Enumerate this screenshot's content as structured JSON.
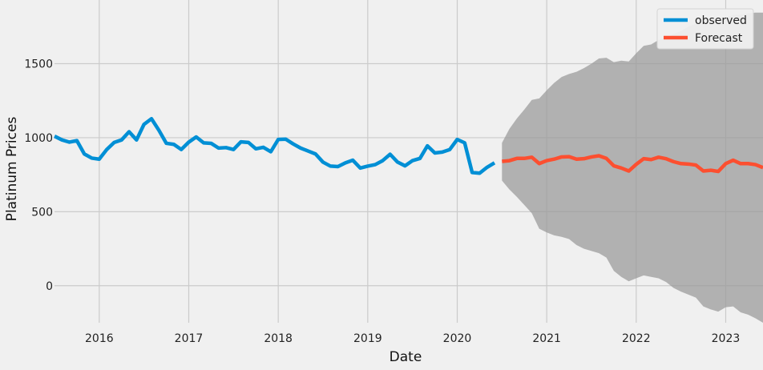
{
  "chart_data": {
    "type": "line",
    "xlabel": "Date",
    "ylabel": "Platinum Prices",
    "xlim": [
      "2015-07-01",
      "2023-06-01"
    ],
    "ylim": [
      -250,
      1930
    ],
    "x_tick_labels": [
      "2016",
      "2017",
      "2018",
      "2019",
      "2020",
      "2021",
      "2022",
      "2023"
    ],
    "y_tick_labels": [
      "0",
      "500",
      "1000",
      "1500"
    ],
    "y_ticks": [
      0,
      500,
      1000,
      1500
    ],
    "grid": true,
    "legend_position": "top-right",
    "colors": {
      "observed": "#008fd5",
      "forecast": "#fc4f30",
      "confidence_band": "#999999",
      "background": "#f0f0f0",
      "grid": "#cbcbcb"
    },
    "series": [
      {
        "name": "observed",
        "points": [
          [
            "2015-07-01",
            1010
          ],
          [
            "2015-08-01",
            985
          ],
          [
            "2015-09-01",
            970
          ],
          [
            "2015-10-01",
            980
          ],
          [
            "2015-11-01",
            890
          ],
          [
            "2015-12-01",
            862
          ],
          [
            "2016-01-01",
            855
          ],
          [
            "2016-02-01",
            920
          ],
          [
            "2016-03-01",
            968
          ],
          [
            "2016-04-01",
            985
          ],
          [
            "2016-05-01",
            1040
          ],
          [
            "2016-06-01",
            985
          ],
          [
            "2016-07-01",
            1090
          ],
          [
            "2016-08-01",
            1128
          ],
          [
            "2016-09-01",
            1050
          ],
          [
            "2016-10-01",
            962
          ],
          [
            "2016-11-01",
            955
          ],
          [
            "2016-12-01",
            920
          ],
          [
            "2017-01-01",
            970
          ],
          [
            "2017-02-01",
            1005
          ],
          [
            "2017-03-01",
            965
          ],
          [
            "2017-04-01",
            962
          ],
          [
            "2017-05-01",
            930
          ],
          [
            "2017-06-01",
            933
          ],
          [
            "2017-07-01",
            920
          ],
          [
            "2017-08-01",
            972
          ],
          [
            "2017-09-01",
            968
          ],
          [
            "2017-10-01",
            925
          ],
          [
            "2017-11-01",
            935
          ],
          [
            "2017-12-01",
            905
          ],
          [
            "2018-01-01",
            988
          ],
          [
            "2018-02-01",
            990
          ],
          [
            "2018-03-01",
            958
          ],
          [
            "2018-04-01",
            930
          ],
          [
            "2018-05-01",
            910
          ],
          [
            "2018-06-01",
            890
          ],
          [
            "2018-07-01",
            835
          ],
          [
            "2018-08-01",
            808
          ],
          [
            "2018-09-01",
            805
          ],
          [
            "2018-10-01",
            830
          ],
          [
            "2018-11-01",
            848
          ],
          [
            "2018-12-01",
            795
          ],
          [
            "2019-01-01",
            808
          ],
          [
            "2019-02-01",
            818
          ],
          [
            "2019-03-01",
            845
          ],
          [
            "2019-04-01",
            888
          ],
          [
            "2019-05-01",
            835
          ],
          [
            "2019-06-01",
            810
          ],
          [
            "2019-07-01",
            845
          ],
          [
            "2019-08-01",
            860
          ],
          [
            "2019-09-01",
            945
          ],
          [
            "2019-10-01",
            897
          ],
          [
            "2019-11-01",
            903
          ],
          [
            "2019-12-01",
            920
          ],
          [
            "2020-01-01",
            988
          ],
          [
            "2020-02-01",
            965
          ],
          [
            "2020-03-01",
            765
          ],
          [
            "2020-04-01",
            760
          ],
          [
            "2020-05-01",
            800
          ],
          [
            "2020-06-01",
            830
          ]
        ]
      },
      {
        "name": "Forecast",
        "points": [
          [
            "2020-07-01",
            840
          ],
          [
            "2020-08-01",
            845
          ],
          [
            "2020-09-01",
            860
          ],
          [
            "2020-10-01",
            860
          ],
          [
            "2020-11-01",
            868
          ],
          [
            "2020-12-01",
            825
          ],
          [
            "2021-01-01",
            845
          ],
          [
            "2021-02-01",
            855
          ],
          [
            "2021-03-01",
            870
          ],
          [
            "2021-04-01",
            872
          ],
          [
            "2021-05-01",
            855
          ],
          [
            "2021-06-01",
            858
          ],
          [
            "2021-07-01",
            870
          ],
          [
            "2021-08-01",
            878
          ],
          [
            "2021-09-01",
            860
          ],
          [
            "2021-10-01",
            810
          ],
          [
            "2021-11-01",
            795
          ],
          [
            "2021-12-01",
            775
          ],
          [
            "2022-01-01",
            820
          ],
          [
            "2022-02-01",
            858
          ],
          [
            "2022-03-01",
            852
          ],
          [
            "2022-04-01",
            868
          ],
          [
            "2022-05-01",
            858
          ],
          [
            "2022-06-01",
            838
          ],
          [
            "2022-07-01",
            825
          ],
          [
            "2022-08-01",
            822
          ],
          [
            "2022-09-01",
            815
          ],
          [
            "2022-10-01",
            775
          ],
          [
            "2022-11-01",
            780
          ],
          [
            "2022-12-01",
            772
          ],
          [
            "2023-01-01",
            825
          ],
          [
            "2023-02-01",
            848
          ],
          [
            "2023-03-01",
            825
          ],
          [
            "2023-04-01",
            825
          ],
          [
            "2023-05-01",
            818
          ],
          [
            "2023-06-01",
            798
          ]
        ]
      }
    ],
    "confidence_interval": {
      "x": [
        "2020-07-01",
        "2020-08-01",
        "2020-09-01",
        "2020-10-01",
        "2020-11-01",
        "2020-12-01",
        "2021-01-01",
        "2021-02-01",
        "2021-03-01",
        "2021-04-01",
        "2021-05-01",
        "2021-06-01",
        "2021-07-01",
        "2021-08-01",
        "2021-09-01",
        "2021-10-01",
        "2021-11-01",
        "2021-12-01",
        "2022-01-01",
        "2022-02-01",
        "2022-03-01",
        "2022-04-01",
        "2022-05-01",
        "2022-06-01",
        "2022-07-01",
        "2022-08-01",
        "2022-09-01",
        "2022-10-01",
        "2022-11-01",
        "2022-12-01",
        "2023-01-01",
        "2023-02-01",
        "2023-03-01",
        "2023-04-01",
        "2023-05-01",
        "2023-06-01"
      ],
      "upper": [
        965,
        1060,
        1130,
        1190,
        1255,
        1265,
        1320,
        1370,
        1410,
        1430,
        1445,
        1470,
        1500,
        1535,
        1540,
        1510,
        1520,
        1515,
        1570,
        1620,
        1630,
        1660,
        1675,
        1700,
        1720,
        1750,
        1770,
        1780,
        1790,
        1790,
        1810,
        1830,
        1830,
        1840,
        1845,
        1845
      ],
      "lower": [
        710,
        650,
        600,
        545,
        490,
        385,
        360,
        340,
        330,
        315,
        275,
        250,
        235,
        220,
        190,
        100,
        60,
        30,
        50,
        70,
        60,
        50,
        25,
        -15,
        -40,
        -60,
        -80,
        -140,
        -160,
        -175,
        -145,
        -140,
        -180,
        -195,
        -220,
        -250
      ]
    }
  }
}
